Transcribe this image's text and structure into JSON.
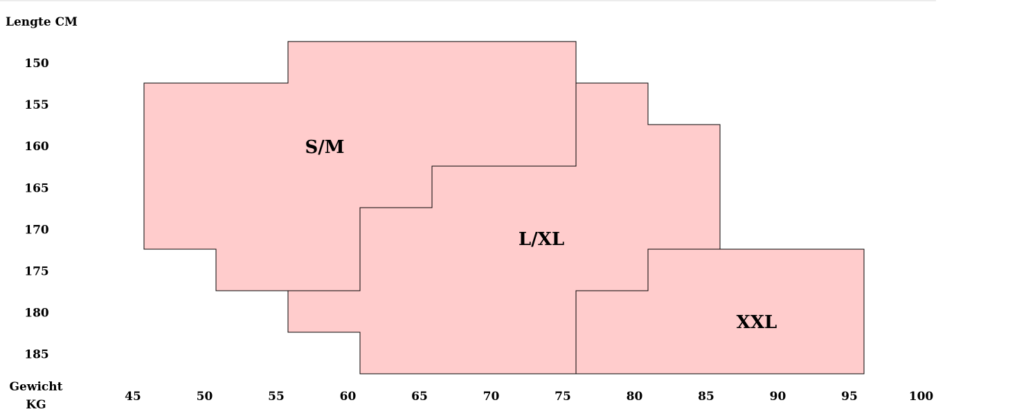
{
  "chart_data": {
    "type": "area",
    "title": "",
    "ylabel": "Lengte CM",
    "xlabel_lines": [
      "Gewicht",
      "KG"
    ],
    "x_ticks": [
      "45",
      "50",
      "55",
      "60",
      "65",
      "70",
      "75",
      "80",
      "85",
      "90",
      "95",
      "100"
    ],
    "y_ticks": [
      "150",
      "155",
      "160",
      "165",
      "170",
      "175",
      "180",
      "185"
    ],
    "fill_color": "#ffcccc",
    "stroke_color": "#000000",
    "regions": [
      {
        "label": "S/M",
        "polygon": [
          [
            55,
            147.5
          ],
          [
            75,
            147.5
          ],
          [
            75,
            162.5
          ],
          [
            65,
            162.5
          ],
          [
            65,
            167.5
          ],
          [
            60,
            167.5
          ],
          [
            60,
            177.5
          ],
          [
            50,
            177.5
          ],
          [
            50,
            172.5
          ],
          [
            45,
            172.5
          ],
          [
            45,
            152.5
          ],
          [
            55,
            152.5
          ]
        ]
      },
      {
        "label": "L/XL",
        "polygon": [
          [
            75,
            152.5
          ],
          [
            80,
            152.5
          ],
          [
            80,
            157.5
          ],
          [
            85,
            157.5
          ],
          [
            85,
            172.5
          ],
          [
            80,
            172.5
          ],
          [
            80,
            177.5
          ],
          [
            75,
            177.5
          ],
          [
            75,
            187.5
          ],
          [
            60,
            187.5
          ],
          [
            60,
            182.5
          ],
          [
            55,
            182.5
          ],
          [
            55,
            177.5
          ],
          [
            60,
            177.5
          ],
          [
            60,
            167.5
          ],
          [
            65,
            167.5
          ],
          [
            65,
            162.5
          ],
          [
            75,
            162.5
          ]
        ]
      },
      {
        "label": "XXL",
        "polygon": [
          [
            80,
            172.5
          ],
          [
            95,
            172.5
          ],
          [
            95,
            187.5
          ],
          [
            75,
            187.5
          ],
          [
            75,
            177.5
          ],
          [
            80,
            177.5
          ]
        ]
      }
    ]
  }
}
